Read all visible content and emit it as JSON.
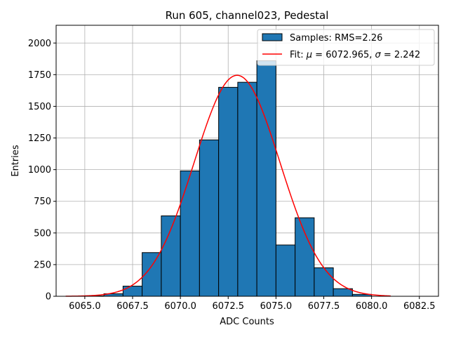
{
  "chart_data": {
    "type": "bar",
    "title": "Run 605, channel023, Pedestal",
    "xlabel": "ADC Counts",
    "ylabel": "Entries",
    "xlim": [
      6063.5,
      6083.5
    ],
    "ylim": [
      0,
      2140
    ],
    "xticks": [
      6065.0,
      6067.5,
      6070.0,
      6072.5,
      6075.0,
      6077.5,
      6080.0,
      6082.5
    ],
    "xtick_labels": [
      "6065.0",
      "6067.5",
      "6070.0",
      "6072.5",
      "6075.0",
      "6077.5",
      "6080.0",
      "6082.5"
    ],
    "yticks": [
      0,
      250,
      500,
      750,
      1000,
      1250,
      1500,
      1750,
      2000
    ],
    "ytick_labels": [
      "0",
      "250",
      "500",
      "750",
      "1000",
      "1250",
      "1500",
      "1750",
      "2000"
    ],
    "grid": true,
    "legend_position": "top-right",
    "histogram": {
      "name": "Samples: RMS=2.26",
      "color": "#1f77b4",
      "edgecolor": "#000000",
      "bin_edges": [
        6064,
        6065,
        6066,
        6067,
        6068,
        6069,
        6070,
        6071,
        6072,
        6073,
        6074,
        6075,
        6076,
        6077,
        6078,
        6079,
        6080,
        6081,
        6082,
        6083
      ],
      "values": [
        0,
        3,
        20,
        80,
        345,
        635,
        990,
        1235,
        1650,
        1690,
        1860,
        405,
        620,
        225,
        60,
        15,
        0,
        0,
        0
      ]
    },
    "fit": {
      "name": "Fit: μ = 6072.965, σ = 2.242",
      "legend_prefix": "Fit: ",
      "legend_mu_symbol": "μ",
      "legend_mu_value": " = 6072.965, ",
      "legend_sigma_symbol": "σ",
      "legend_sigma_value": " = 2.242",
      "color": "#ff0000",
      "mu": 6072.965,
      "sigma": 2.242,
      "amplitude": 1745,
      "x_range": [
        6064,
        6081
      ]
    }
  }
}
